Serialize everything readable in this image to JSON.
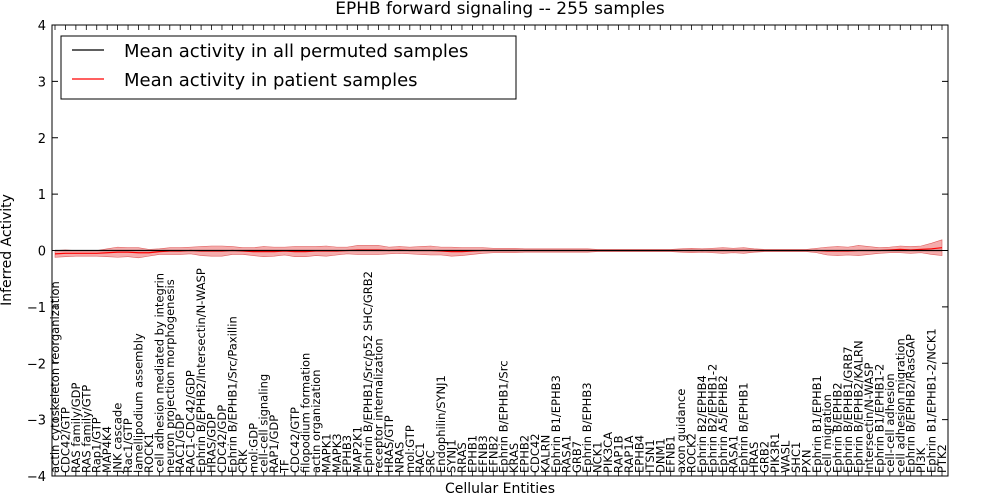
{
  "chart_data": {
    "type": "line",
    "title": "EPHB forward signaling -- 255 samples",
    "xlabel": "Cellular Entities",
    "ylabel": "Inferred Activity",
    "ylim": [
      -4,
      4
    ],
    "yticks": [
      4,
      3,
      2,
      1,
      0,
      -1,
      -2,
      -3,
      -4
    ],
    "legend": {
      "placement": "top-left",
      "entries": [
        {
          "label": "Mean activity in all permuted samples",
          "color": "#000000"
        },
        {
          "label": "Mean activity in patient samples",
          "color": "#ff0000"
        }
      ]
    },
    "band_color": "#f08080",
    "categories": [
      "actin cytoskeleton reorganization",
      "CDC42/GTP",
      "RAS family/GDP",
      "RAS family/GTP",
      "Rap1/GTP",
      "MAP4K4",
      "JNK cascade",
      "Rac1/GTP",
      "lamellipodium assembly",
      "ROCK1",
      "cell adhesion mediated by integrin",
      "neuron projection morphogenesis",
      "RAC1/GDP",
      "RAC1-CDC42/GDP",
      "Ephrin B/EPHB2/Intersectin/N-WASP",
      "HRAS/GDP",
      "CDC42/GDP",
      "Ephrin B/EPHB1/Src/Paxillin",
      "CRK",
      "mol:GDP",
      "cell-cell signaling",
      "RAP1/GDP",
      "TF",
      "CDC42/GTP",
      "filopodium formation",
      "actin organization",
      "MAPK1",
      "MAPK3",
      "EPHB3",
      "MAP2K1",
      "Ephrin B/EPHB1/Src/p52 SHC/GRB2",
      "receptor internalization",
      "HRAS/GTP",
      "NRAS",
      "mol:GTP",
      "RAC1",
      "SRC",
      "Endophilin/SYNJ1",
      "SYNJ1",
      "RRAS",
      "EPHB1",
      "EFNB3",
      "EFNB2",
      "Ephrin B/EPHB1/Src",
      "KRAS",
      "EPHB2",
      "CDC42",
      "KALRN",
      "Ephrin B1/EPHB3",
      "RASA1",
      "GRB7",
      "Ephrin B/EPHB3",
      "NCK1",
      "PIK3CA",
      "RAP1B",
      "RAP1A",
      "EPHB4",
      "ITSN1",
      "DNM1",
      "EFNB1",
      "axon guidance",
      "ROCK2",
      "Ephrin B2/EPHB4",
      "Ephrin B2/EPHB1-2",
      "Ephrin A5/EPHB2",
      "RASA1",
      "Ephrin B/EPHB1",
      "HRAS",
      "GRB2",
      "PIK3R1",
      "WASL",
      "SHC1",
      "PXN",
      "Ephrin B1/EPHB1",
      "cell migration",
      "Ephrin B/EPHB2",
      "Ephrin B/EPHB1/GRB7",
      "Ephrin B/EPHB2/KALRN",
      "Intersectin/N-WASP",
      "Ephrin B1/EPHB1-2",
      "cell-cell adhesion",
      "cell adhesion migration",
      "Ephrin B/EPHB2/RasGAP",
      "PI3K",
      "Ephrin B1/EPHB1-2/NCK1",
      "PTK2"
    ],
    "patient_mean": [
      -0.06,
      -0.05,
      -0.05,
      -0.05,
      -0.05,
      -0.04,
      -0.03,
      -0.03,
      -0.04,
      -0.04,
      -0.02,
      -0.01,
      -0.01,
      0.0,
      -0.01,
      -0.01,
      -0.01,
      0.0,
      -0.01,
      -0.02,
      -0.02,
      -0.02,
      -0.01,
      -0.02,
      -0.02,
      -0.01,
      -0.01,
      -0.01,
      0.0,
      0.01,
      0.01,
      0.01,
      0.0,
      0.01,
      0.0,
      0.0,
      0.0,
      -0.01,
      -0.02,
      -0.02,
      -0.01,
      0.0,
      0.0,
      0.0,
      0.0,
      0.0,
      0.0,
      0.0,
      0.0,
      0.0,
      0.0,
      0.0,
      0.0,
      0.0,
      0.0,
      0.0,
      0.0,
      0.0,
      0.0,
      0.0,
      0.0,
      0.0,
      0.0,
      0.0,
      0.0,
      0.0,
      0.0,
      0.0,
      0.0,
      0.0,
      0.0,
      0.0,
      0.0,
      0.0,
      -0.01,
      -0.01,
      -0.01,
      0.0,
      0.0,
      0.0,
      0.01,
      0.02,
      0.01,
      0.02,
      0.03,
      0.05
    ],
    "patient_std": [
      0.06,
      0.06,
      0.05,
      0.05,
      0.05,
      0.07,
      0.09,
      0.08,
      0.09,
      0.06,
      0.05,
      0.06,
      0.06,
      0.06,
      0.08,
      0.09,
      0.09,
      0.07,
      0.06,
      0.07,
      0.09,
      0.08,
      0.07,
      0.09,
      0.09,
      0.08,
      0.09,
      0.07,
      0.06,
      0.08,
      0.08,
      0.08,
      0.06,
      0.06,
      0.06,
      0.07,
      0.08,
      0.07,
      0.08,
      0.07,
      0.06,
      0.05,
      0.04,
      0.04,
      0.04,
      0.03,
      0.03,
      0.03,
      0.03,
      0.03,
      0.03,
      0.03,
      0.02,
      0.02,
      0.02,
      0.02,
      0.02,
      0.02,
      0.02,
      0.02,
      0.03,
      0.04,
      0.03,
      0.04,
      0.05,
      0.04,
      0.05,
      0.03,
      0.02,
      0.02,
      0.02,
      0.02,
      0.02,
      0.04,
      0.07,
      0.08,
      0.07,
      0.09,
      0.07,
      0.05,
      0.05,
      0.06,
      0.06,
      0.06,
      0.1,
      0.14
    ],
    "permuted_mean": [
      0.0,
      0.0,
      0.0,
      0.0,
      0.0,
      0.0,
      0.0,
      0.0,
      0.0,
      0.0,
      0.0,
      0.0,
      0.0,
      0.0,
      0.0,
      0.0,
      0.0,
      0.0,
      0.0,
      0.0,
      0.0,
      0.0,
      0.0,
      0.0,
      0.0,
      0.0,
      0.0,
      0.0,
      0.0,
      0.0,
      0.0,
      0.0,
      0.0,
      0.0,
      0.0,
      0.0,
      0.0,
      0.0,
      0.0,
      0.0,
      0.0,
      0.0,
      0.0,
      0.0,
      0.0,
      0.0,
      0.0,
      0.0,
      0.0,
      0.0,
      0.0,
      0.0,
      0.0,
      0.0,
      0.0,
      0.0,
      0.0,
      0.0,
      0.0,
      0.0,
      0.0,
      0.0,
      0.0,
      0.0,
      0.0,
      0.0,
      0.0,
      0.0,
      0.0,
      0.0,
      0.0,
      0.0,
      0.0,
      0.0,
      0.0,
      0.0,
      0.0,
      0.0,
      0.0,
      0.0,
      0.0,
      0.0,
      0.0,
      0.0,
      0.0,
      0.0
    ]
  }
}
